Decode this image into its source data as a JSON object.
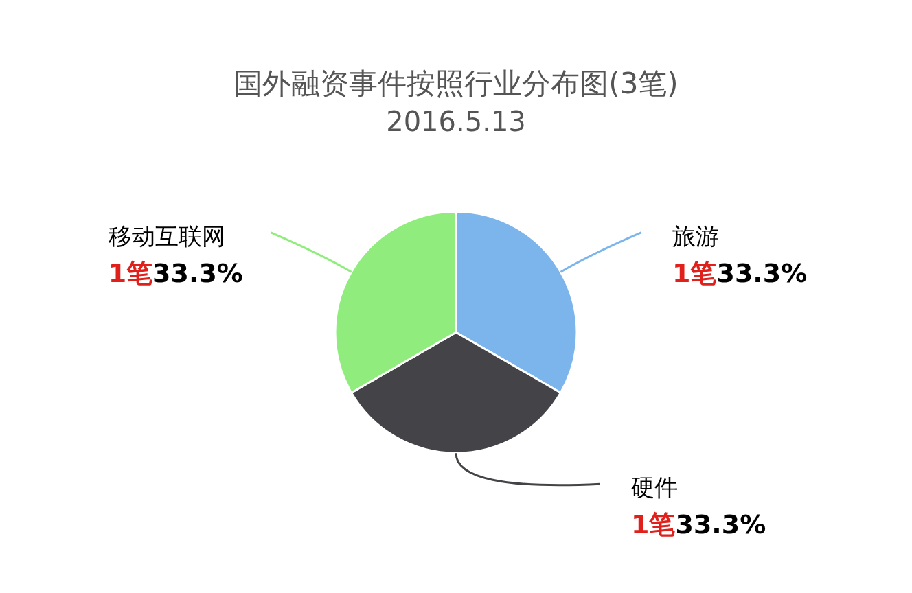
{
  "chart_data": {
    "type": "pie",
    "title": "国外融资事件按照行业分布图(3笔)",
    "subtitle": "2016.5.13",
    "categories": [
      "旅游",
      "硬件",
      "移动互联网"
    ],
    "values": [
      1,
      1,
      1
    ],
    "colors": [
      "#7cb5ec",
      "#434348",
      "#90ed7d"
    ],
    "value_labels": [
      "1笔33.3%",
      "1笔33.3%",
      "1笔33.3%"
    ],
    "legend": false
  }
}
